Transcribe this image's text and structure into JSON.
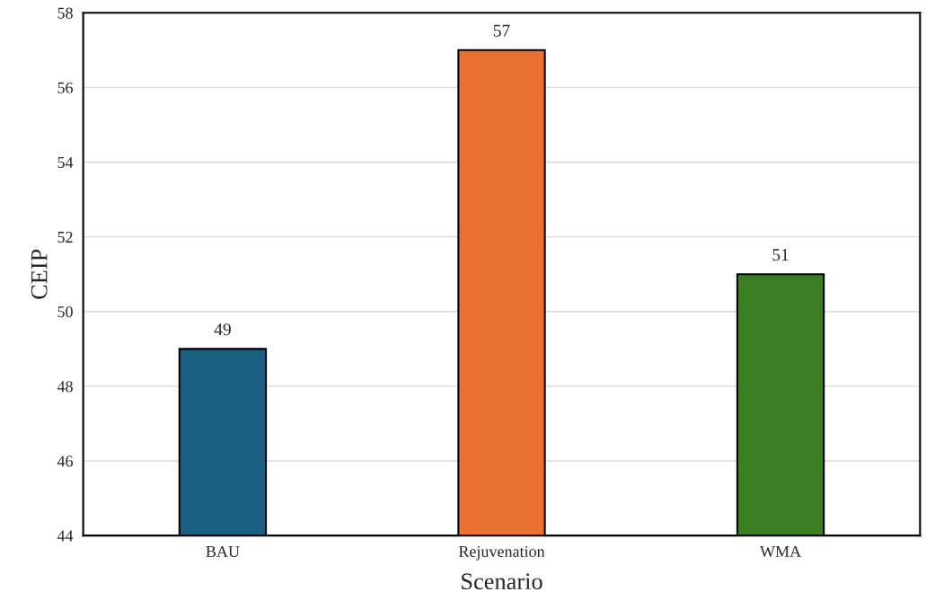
{
  "chart_data": {
    "type": "bar",
    "xlabel": "Scenario",
    "ylabel": "CEIP",
    "categories": [
      "BAU",
      "Rejuvenation",
      "WMA"
    ],
    "values": [
      49,
      57,
      51
    ],
    "colors": [
      "#1a5f82",
      "#e97132",
      "#3b7d23"
    ],
    "ylim": [
      44,
      58
    ],
    "yticks": [
      44,
      46,
      48,
      50,
      52,
      54,
      56,
      58
    ],
    "grid": "y",
    "data_labels": true,
    "legend": false
  }
}
